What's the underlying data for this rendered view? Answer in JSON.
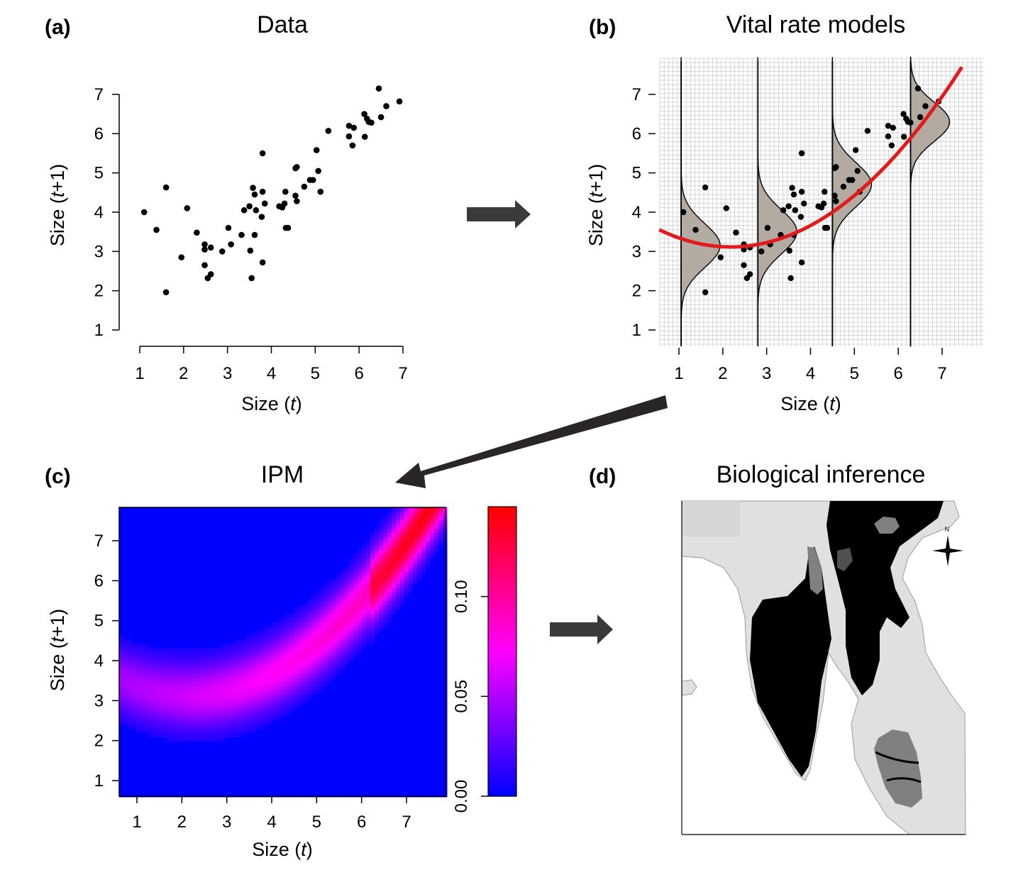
{
  "panels": {
    "a": {
      "letter": "(a)",
      "title": "Data"
    },
    "b": {
      "letter": "(b)",
      "title": "Vital rate models"
    },
    "c": {
      "letter": "(c)",
      "title": "IPM"
    },
    "d": {
      "letter": "(d)",
      "title": "Biological inference"
    }
  },
  "axes": {
    "xlabel_prefix": "Size (",
    "xlabel_var": "t",
    "xlabel_suffix": ")",
    "ylabel_prefix": "Size (",
    "ylabel_var": "t",
    "ylabel_suffix": "+1)"
  },
  "colors": {
    "points": "#000000",
    "fit_line": "#e31a1c",
    "density_fill": "#b3aaa1",
    "grid": "#bdbdbd",
    "arrow": "#3a3a3a",
    "heat_low": "#0000ff",
    "heat_mid": "#ff00ff",
    "heat_high": "#ff0000",
    "map_land": "#e0e0e0",
    "map_dark": "#000000",
    "map_mid": "#808080"
  },
  "icons": {
    "arrow_right_a_b": "arrow-right-icon",
    "arrow_diag_b_c": "arrow-down-left-icon",
    "arrow_right_c_d": "arrow-right-icon",
    "compass": "compass-rose-icon",
    "compass_label": "N"
  },
  "chart_data": [
    {
      "id": "a",
      "type": "scatter",
      "title": "Data",
      "xlabel": "Size (t)",
      "ylabel": "Size (t+1)",
      "xlim": [
        1,
        7
      ],
      "ylim": [
        1,
        7
      ],
      "xticks": [
        1,
        2,
        3,
        4,
        5,
        6,
        7
      ],
      "yticks": [
        1,
        2,
        3,
        4,
        5,
        6,
        7
      ],
      "grid": false,
      "points": [
        [
          1.1,
          4.0
        ],
        [
          1.38,
          3.55
        ],
        [
          1.6,
          4.63
        ],
        [
          1.6,
          1.96
        ],
        [
          1.95,
          2.85
        ],
        [
          2.08,
          4.1
        ],
        [
          2.3,
          3.48
        ],
        [
          2.48,
          3.18
        ],
        [
          2.48,
          3.05
        ],
        [
          2.48,
          2.65
        ],
        [
          2.55,
          2.32
        ],
        [
          2.62,
          2.42
        ],
        [
          2.62,
          3.1
        ],
        [
          2.88,
          3.0
        ],
        [
          3.02,
          3.6
        ],
        [
          3.08,
          3.18
        ],
        [
          3.32,
          3.42
        ],
        [
          3.38,
          4.05
        ],
        [
          3.5,
          4.15
        ],
        [
          3.52,
          3.02
        ],
        [
          3.55,
          2.32
        ],
        [
          3.58,
          4.62
        ],
        [
          3.62,
          3.42
        ],
        [
          3.62,
          4.45
        ],
        [
          3.65,
          4.05
        ],
        [
          3.78,
          3.88
        ],
        [
          3.8,
          2.72
        ],
        [
          3.8,
          5.5
        ],
        [
          3.8,
          4.52
        ],
        [
          3.85,
          4.22
        ],
        [
          4.18,
          4.15
        ],
        [
          4.25,
          4.12
        ],
        [
          4.3,
          4.22
        ],
        [
          4.32,
          4.52
        ],
        [
          4.33,
          3.6
        ],
        [
          4.38,
          3.6
        ],
        [
          4.55,
          4.42
        ],
        [
          4.55,
          5.12
        ],
        [
          4.58,
          4.28
        ],
        [
          4.58,
          5.15
        ],
        [
          4.75,
          4.65
        ],
        [
          4.88,
          4.82
        ],
        [
          4.95,
          4.82
        ],
        [
          5.03,
          5.58
        ],
        [
          5.07,
          5.05
        ],
        [
          5.12,
          4.52
        ],
        [
          5.3,
          6.07
        ],
        [
          5.77,
          6.2
        ],
        [
          5.77,
          5.93
        ],
        [
          5.85,
          5.7
        ],
        [
          5.88,
          6.15
        ],
        [
          6.12,
          6.5
        ],
        [
          6.13,
          5.92
        ],
        [
          6.18,
          6.38
        ],
        [
          6.22,
          6.3
        ],
        [
          6.28,
          6.28
        ],
        [
          6.45,
          7.15
        ],
        [
          6.5,
          6.42
        ],
        [
          6.62,
          6.7
        ],
        [
          6.92,
          6.82
        ]
      ]
    },
    {
      "id": "b",
      "type": "scatter",
      "title": "Vital rate models",
      "xlabel": "Size (t)",
      "ylabel": "Size (t+1)",
      "xlim": [
        1,
        7
      ],
      "ylim": [
        1,
        7
      ],
      "xticks": [
        1,
        2,
        3,
        4,
        5,
        6,
        7
      ],
      "yticks": [
        1,
        2,
        3,
        4,
        5,
        6,
        7
      ],
      "grid": true,
      "points_same_as": "a",
      "fit_line": {
        "form": "quadratic",
        "coeffs": [
          3.9,
          -0.72,
          0.165
        ],
        "x_range": [
          0.55,
          7.45
        ]
      },
      "density_slices": [
        {
          "x": 1.05,
          "mean": 3.15,
          "sd": 0.56
        },
        {
          "x": 2.8,
          "mean": 3.5,
          "sd": 0.56
        },
        {
          "x": 4.5,
          "mean": 4.7,
          "sd": 0.56
        },
        {
          "x": 6.28,
          "mean": 6.3,
          "sd": 0.5
        }
      ]
    },
    {
      "id": "c",
      "type": "heatmap",
      "title": "IPM",
      "xlabel": "Size (t)",
      "ylabel": "Size (t+1)",
      "xlim": [
        0.6,
        7.85
      ],
      "ylim": [
        0.6,
        7.85
      ],
      "xticks": [
        1,
        2,
        3,
        4,
        5,
        6,
        7
      ],
      "yticks": [
        1,
        2,
        3,
        4,
        5,
        6,
        7
      ],
      "colorbar": {
        "min": 0.0,
        "max": 0.145,
        "ticks": [
          "0.00",
          "0.05",
          "0.10"
        ],
        "tick_values": [
          0.0,
          0.05,
          0.1
        ]
      },
      "kernel": {
        "mean_coeffs": [
          3.9,
          -0.72,
          0.165
        ],
        "sd": 0.58,
        "peak": 0.145,
        "cutoff": 0.008
      }
    }
  ],
  "map": {
    "type": "map-figure",
    "compass_label": "N"
  }
}
